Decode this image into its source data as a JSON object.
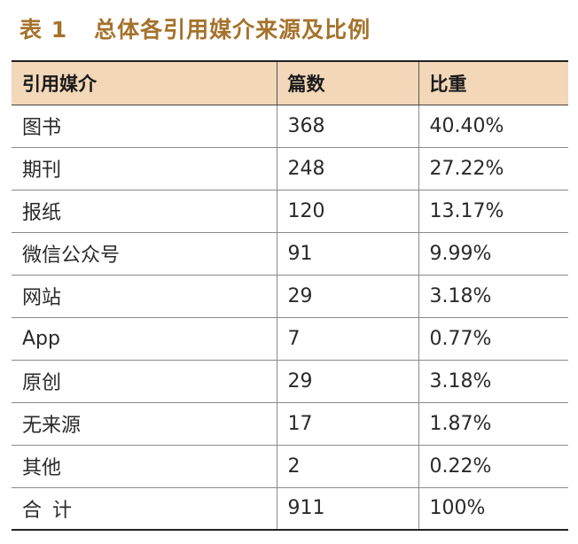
{
  "title": {
    "number": "表 1",
    "text": "总体各引用媒介来源及比例"
  },
  "table": {
    "headers": [
      "引用媒介",
      "篇数",
      "比重"
    ],
    "rows": [
      [
        "图书",
        "368",
        "40.40%"
      ],
      [
        "期刊",
        "248",
        "27.22%"
      ],
      [
        "报纸",
        "120",
        "13.17%"
      ],
      [
        "微信公众号",
        "91",
        "9.99%"
      ],
      [
        "网站",
        "29",
        "3.18%"
      ],
      [
        "App",
        "7",
        "0.77%"
      ],
      [
        "原创",
        "29",
        "3.18%"
      ],
      [
        "无来源",
        "17",
        "1.87%"
      ],
      [
        "其他",
        "2",
        "0.22%"
      ],
      [
        "合计",
        "911",
        "100%"
      ]
    ]
  },
  "colors": {
    "title": "#a5722c",
    "header_background": "#f2d7b8"
  }
}
